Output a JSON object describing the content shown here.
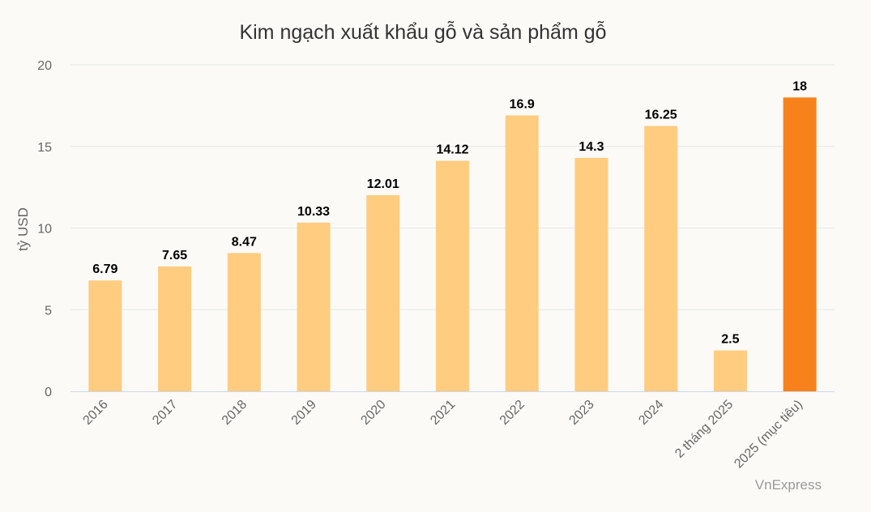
{
  "chart_data": {
    "type": "bar",
    "title": "Kim ngạch xuất khẩu gỗ và sản phẩm gỗ",
    "ylabel": "tỷ USD",
    "xlabel": "",
    "ylim": [
      0,
      20
    ],
    "yticks": [
      0,
      5,
      10,
      15,
      20
    ],
    "categories": [
      "2016",
      "2017",
      "2018",
      "2019",
      "2020",
      "2021",
      "2022",
      "2023",
      "2024",
      "2 tháng 2025",
      "2025 (mục tiêu)"
    ],
    "values": [
      6.79,
      7.65,
      8.47,
      10.33,
      12.01,
      14.12,
      16.9,
      14.3,
      16.25,
      2.5,
      18
    ],
    "data_labels": [
      "6.79",
      "7.65",
      "8.47",
      "10.33",
      "12.01",
      "14.12",
      "16.9",
      "14.3",
      "16.25",
      "2.5",
      "18"
    ],
    "grid": true,
    "legend": "none",
    "colors": {
      "bar": "#ffcc80",
      "highlight": "#f7821b",
      "grid": "#e6e6e6",
      "axis": "#ccd6eb"
    },
    "highlight_index": 10
  },
  "credit": "VnExpress"
}
